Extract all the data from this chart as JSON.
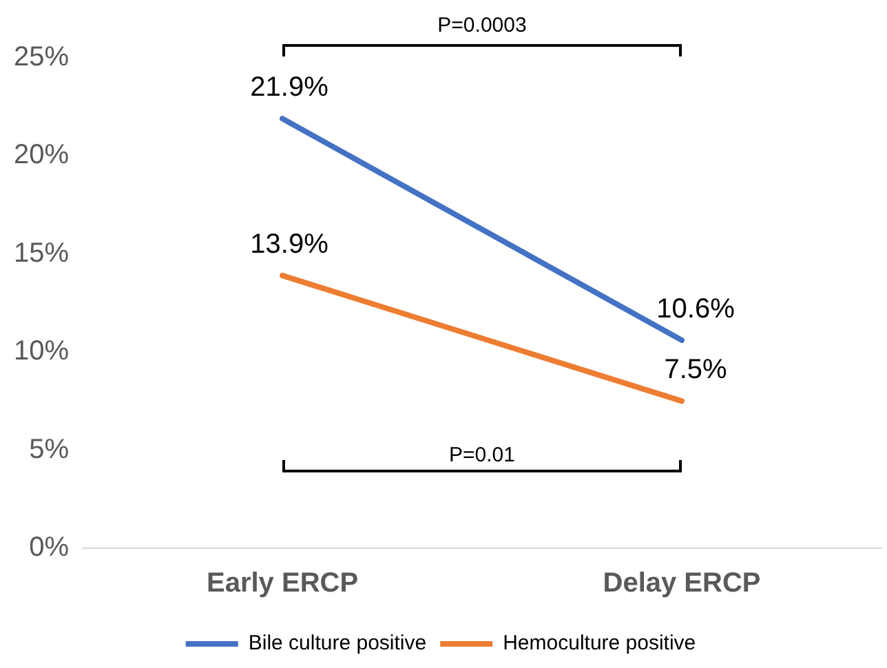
{
  "chart_data": {
    "type": "line",
    "categories": [
      "Early ERCP",
      "Delay ERCP"
    ],
    "series": [
      {
        "name": "Bile culture positive",
        "color": "#4472c4",
        "values": [
          21.9,
          10.6
        ],
        "value_labels": [
          "21.9%",
          "10.6%"
        ]
      },
      {
        "name": "Hemoculture positive",
        "color": "#ed7d31",
        "values": [
          13.9,
          7.5
        ],
        "value_labels": [
          "13.9%",
          "7.5%"
        ]
      }
    ],
    "ylim": [
      0,
      25
    ],
    "yticks": [
      {
        "value": 0,
        "label": "0%"
      },
      {
        "value": 5,
        "label": "5%"
      },
      {
        "value": 10,
        "label": "10%"
      },
      {
        "value": 15,
        "label": "15%"
      },
      {
        "value": 20,
        "label": "20%"
      },
      {
        "value": 25,
        "label": "25%"
      }
    ],
    "annotations": [
      "P=0.0003",
      "P=0.01"
    ],
    "grid": false,
    "legend": "bottom",
    "marker": "none",
    "line_style": "solid"
  }
}
